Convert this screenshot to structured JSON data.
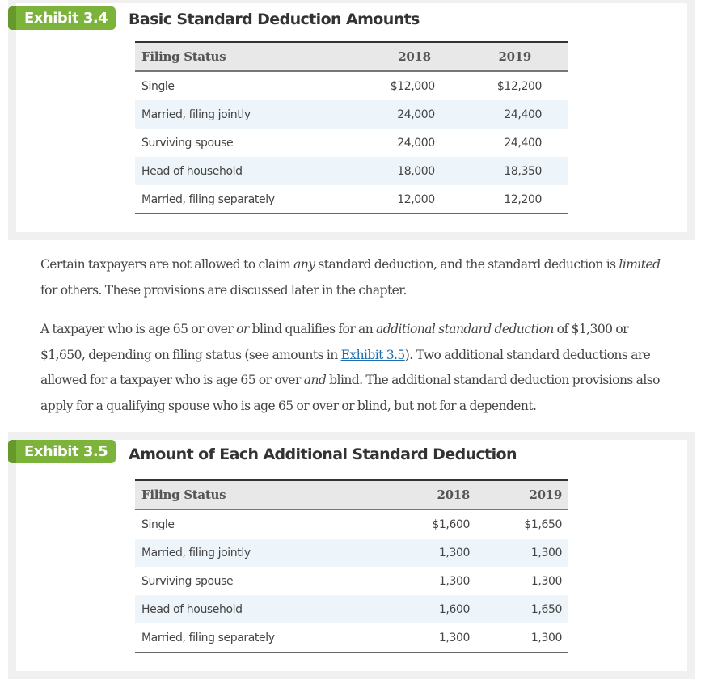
{
  "exhibits": [
    {
      "label": "Exhibit 3.4",
      "title": "Basic Standard Deduction Amounts",
      "columns": [
        "Filing Status",
        "2018",
        "2019"
      ],
      "rows": [
        {
          "status": "Single",
          "y2018": "$12,000",
          "y2019": "$12,200"
        },
        {
          "status": "Married, filing jointly",
          "y2018": "24,000",
          "y2019": "24,400"
        },
        {
          "status": "Surviving spouse",
          "y2018": "24,000",
          "y2019": "24,400"
        },
        {
          "status": "Head of household",
          "y2018": "18,000",
          "y2019": "18,350"
        },
        {
          "status": "Married, filing separately",
          "y2018": "12,000",
          "y2019": "12,200"
        }
      ]
    },
    {
      "label": "Exhibit 3.5",
      "title": "Amount of Each Additional Standard Deduction",
      "columns": [
        "Filing Status",
        "2018",
        "2019"
      ],
      "rows": [
        {
          "status": "Single",
          "y2018": "$1,600",
          "y2019": "$1,650"
        },
        {
          "status": "Married, filing jointly",
          "y2018": "1,300",
          "y2019": "1,300"
        },
        {
          "status": "Surviving spouse",
          "y2018": "1,300",
          "y2019": "1,300"
        },
        {
          "status": "Head of household",
          "y2018": "1,600",
          "y2019": "1,650"
        },
        {
          "status": "Married, filing separately",
          "y2018": "1,300",
          "y2019": "1,300"
        }
      ]
    }
  ],
  "paragraphs": {
    "p1": {
      "t1": "Certain taxpayers are not allowed to claim ",
      "em1": "any",
      "t2": " standard deduction, and the standard deduction is ",
      "em2": "limited",
      "t3": " for others. These provisions are discussed later in the chapter."
    },
    "p2": {
      "t1": "A taxpayer who is age 65 or over ",
      "em1": "or",
      "t2": " blind qualifies for an ",
      "em2": "additional standard deduction",
      "t3": " of $1,300 or $1,650, depending on filing status (see amounts in ",
      "link": "Exhibit 3.5",
      "t4": "). Two additional standard deductions are allowed for a taxpayer who is age 65 or over ",
      "em3": "and",
      "t5": " blind. The additional standard deduction provisions also apply for a qualifying spouse who is age 65 or over or blind, but not for a dependent."
    }
  },
  "colors": {
    "label_green": "#7cb33a",
    "label_green_dark": "#66982b",
    "frame_gray": "#f0f0f0",
    "row_stripe": "#edf5fa",
    "link_blue": "#1a6fb0"
  }
}
